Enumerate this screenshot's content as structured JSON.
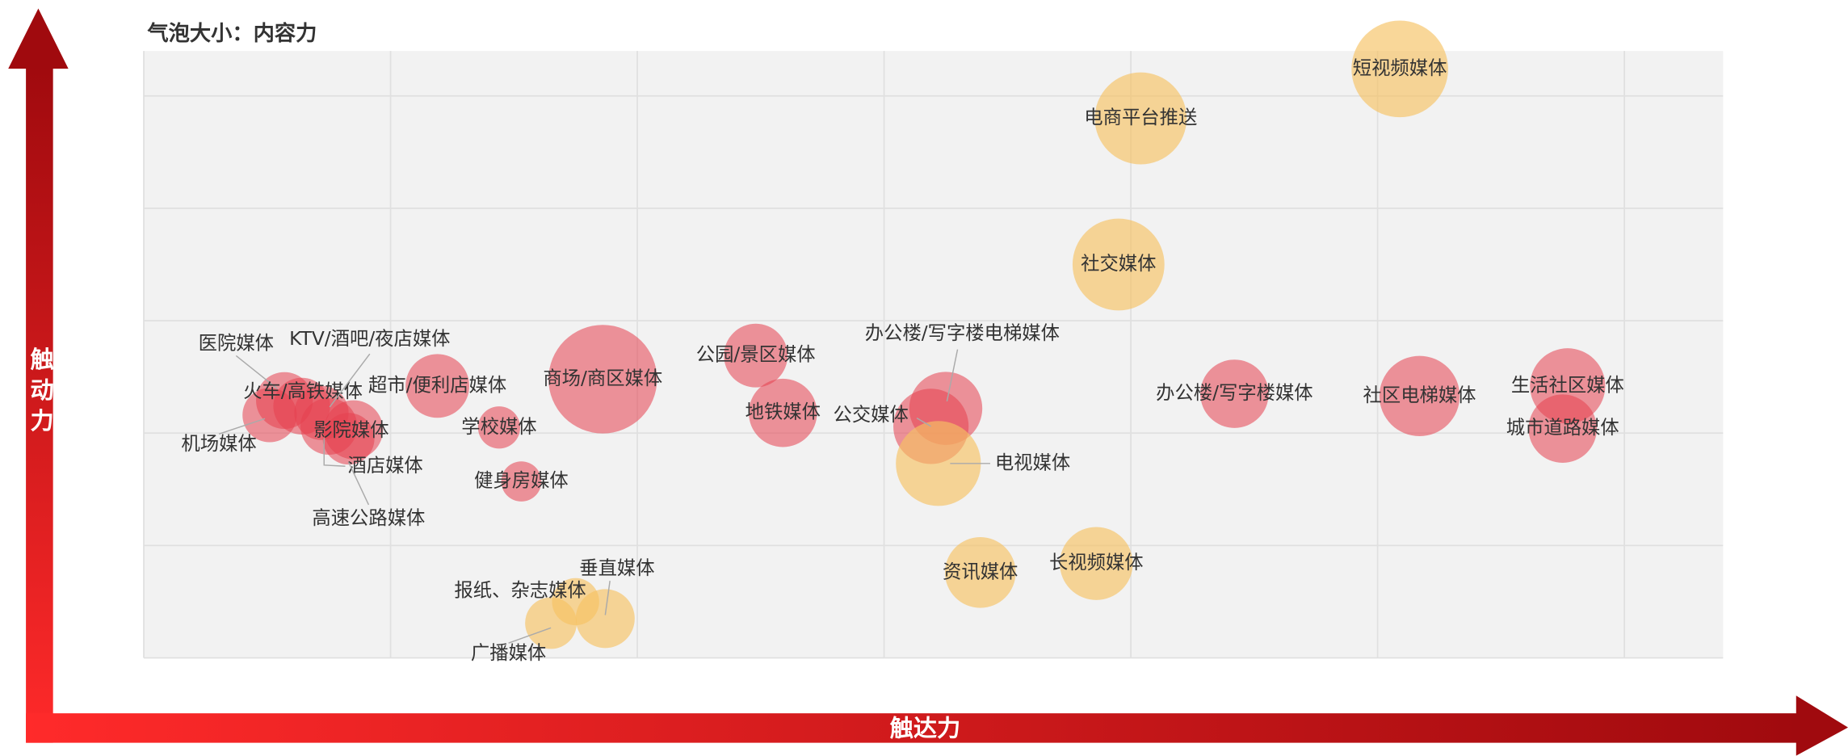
{
  "chart_data": {
    "type": "bubble",
    "subtitle": "气泡大小：内容力",
    "x_label": "触达力",
    "y_label": "触动力",
    "xlim": [
      0,
      6.4
    ],
    "ylim": [
      0,
      5.4
    ],
    "xgrid": [
      0,
      1,
      2,
      3,
      4,
      5,
      6
    ],
    "ygrid": [
      0,
      1,
      2,
      3,
      4,
      5
    ],
    "labels": [
      "短视频媒体",
      "电商平台推送",
      "社交媒体",
      "商场/商区媒体",
      "公园/景区媒体",
      "地铁媒体",
      "办公楼/写字楼电梯媒体",
      "公交媒体",
      "电视媒体",
      "办公楼/写字楼媒体",
      "社区电梯媒体",
      "生活社区媒体",
      "城市道路媒体",
      "资讯媒体",
      "长视频媒体",
      "垂直媒体",
      "报纸、杂志媒体",
      "广播媒体",
      "超市/便利店媒体",
      "学校媒体",
      "健身房媒体",
      "机场媒体",
      "医院媒体",
      "火车/高铁媒体",
      "KTV/酒吧/夜店媒体",
      "影院媒体",
      "酒店媒体",
      "高速公路媒体"
    ],
    "x": [
      5.09,
      4.04,
      3.95,
      1.86,
      2.48,
      2.59,
      3.25,
      3.19,
      3.22,
      4.42,
      5.17,
      5.77,
      5.75,
      3.39,
      3.86,
      1.87,
      1.75,
      1.65,
      1.19,
      1.44,
      1.53,
      0.51,
      0.57,
      0.64,
      0.72,
      0.75,
      0.85,
      0.83
    ],
    "y": [
      5.24,
      4.8,
      3.5,
      2.48,
      2.69,
      2.18,
      2.22,
      2.06,
      1.73,
      2.35,
      2.33,
      2.42,
      2.04,
      0.76,
      0.84,
      0.35,
      0.5,
      0.31,
      2.42,
      2.05,
      1.57,
      2.16,
      2.29,
      2.24,
      2.18,
      2.06,
      2.03,
      1.95
    ],
    "sizes": [
      16.8,
      15.2,
      15.2,
      21.2,
      7.3,
      8.4,
      9.6,
      10.2,
      13,
      8.4,
      11.6,
      10.2,
      8.4,
      9,
      9.6,
      6.25,
      4,
      4.8,
      7.3,
      3.2,
      2.9,
      5.3,
      5.8,
      5.8,
      5.3,
      5.8,
      6.25,
      4.8
    ],
    "colors": [
      "#f6c163",
      "#f6c163",
      "#f6c163",
      "#e5404f",
      "#e5404f",
      "#e5404f",
      "#e5404f",
      "#e5404f",
      "#f6c163",
      "#e5404f",
      "#e5404f",
      "#e5404f",
      "#e5404f",
      "#f6c163",
      "#f6c163",
      "#f6c163",
      "#f6c163",
      "#f6c163",
      "#e5404f",
      "#e5404f",
      "#e5404f",
      "#e5404f",
      "#e5404f",
      "#e5404f",
      "#e5404f",
      "#e5404f",
      "#e5404f",
      "#e5404f"
    ]
  }
}
